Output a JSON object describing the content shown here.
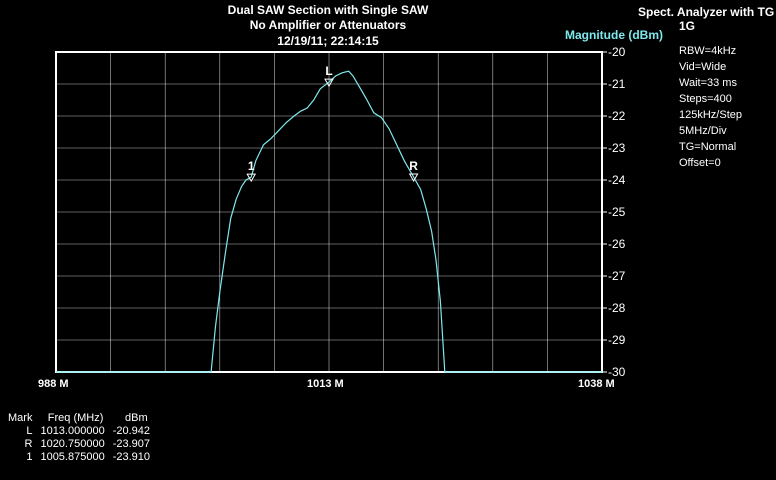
{
  "title": {
    "line1": "Dual SAW Section with Single SAW",
    "line2": "No Amplifier or Attenuators",
    "line3": "12/19/11; 22:14:15"
  },
  "instrument": {
    "name_line1": "Spect. Analyzer with TG",
    "name_line2": "1G"
  },
  "settings": [
    "RBW=4kHz",
    "Vid=Wide",
    "Wait=33 ms",
    "Steps=400",
    "125kHz/Step",
    "5MHz/Div",
    "TG=Normal",
    "Offset=0"
  ],
  "colors": {
    "trace": "#7fe8ec",
    "grid": "#ffffff",
    "background": "#000000",
    "ylabel": "#7fe8ec"
  },
  "chart_data": {
    "type": "line",
    "title": "Dual SAW Section with Single SAW",
    "xlabel": "",
    "ylabel": "Magnitude (dBm)",
    "xlim": [
      988,
      1038
    ],
    "ylim": [
      -30,
      -20
    ],
    "grid": true,
    "x_tick_labels": [
      "988 M",
      "1013 M",
      "1038 M"
    ],
    "y_ticks": [
      -20,
      -21,
      -22,
      -23,
      -24,
      -25,
      -26,
      -27,
      -28,
      -29,
      -30
    ],
    "series": [
      {
        "x": [
          988,
          1002.2,
          1002.6,
          1003.0,
          1003.5,
          1004.0,
          1004.5,
          1005.0,
          1005.4,
          1005.875,
          1006.3,
          1007.0,
          1007.7,
          1008.4,
          1009.1,
          1009.8,
          1010.4,
          1011.0,
          1011.6,
          1012.2,
          1013.0,
          1013.6,
          1014.2,
          1014.8,
          1015.2,
          1015.8,
          1016.4,
          1017.1,
          1017.8,
          1018.5,
          1019.2,
          1019.9,
          1020.75,
          1021.4,
          1021.9,
          1022.4,
          1022.8,
          1023.2,
          1023.6,
          1038
        ],
        "y": [
          -30,
          -30,
          -28.6,
          -27.5,
          -26.3,
          -25.2,
          -24.6,
          -24.2,
          -24.0,
          -23.91,
          -23.4,
          -22.9,
          -22.7,
          -22.45,
          -22.2,
          -22.0,
          -21.85,
          -21.75,
          -21.5,
          -21.15,
          -20.94,
          -20.75,
          -20.65,
          -20.6,
          -20.75,
          -21.1,
          -21.45,
          -21.9,
          -22.05,
          -22.4,
          -22.9,
          -23.4,
          -23.907,
          -24.3,
          -24.9,
          -25.6,
          -26.5,
          -27.8,
          -30,
          -30
        ]
      }
    ],
    "markers": [
      {
        "label": "L",
        "freq": 1013.0,
        "dbm": -20.942
      },
      {
        "label": "R",
        "freq": 1020.75,
        "dbm": -23.907
      },
      {
        "label": "1",
        "freq": 1005.875,
        "dbm": -23.91
      }
    ]
  },
  "marker_table": {
    "headers": [
      "Mark",
      "Freq (MHz)",
      "dBm"
    ],
    "rows": [
      [
        "L",
        "1013.000000",
        "-20.942"
      ],
      [
        "R",
        "1020.750000",
        "-23.907"
      ],
      [
        "1",
        "1005.875000",
        "-23.910"
      ]
    ]
  }
}
